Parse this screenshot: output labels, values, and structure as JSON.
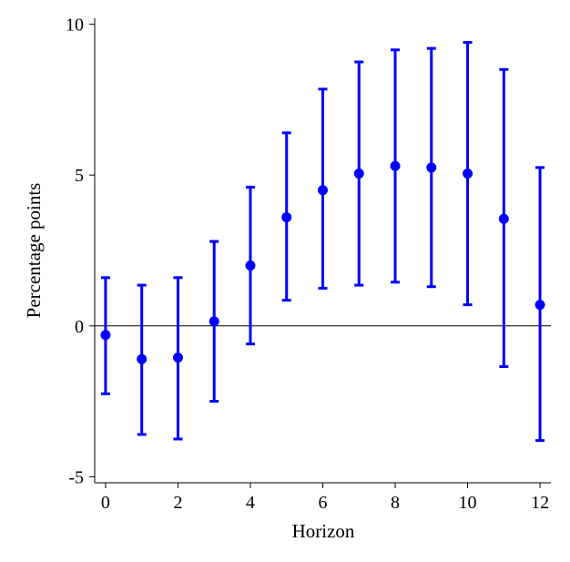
{
  "chart_data": {
    "type": "scatter",
    "title": "",
    "xlabel": "Horizon",
    "ylabel": "Percentage points",
    "xlim": [
      -0.3,
      12.3
    ],
    "ylim": [
      -5.2,
      10.2
    ],
    "xticks": [
      0,
      2,
      4,
      6,
      8,
      10,
      12
    ],
    "xtick_labels": [
      "0",
      "2",
      "4",
      "6",
      "8",
      "10",
      "12"
    ],
    "yticks": [
      -5,
      0,
      5,
      10
    ],
    "ytick_labels": [
      "-5",
      "0",
      "5",
      "10"
    ],
    "zero_line": true,
    "grid": false,
    "legend": "none",
    "series": [
      {
        "x": [
          0,
          1,
          2,
          3,
          4,
          5,
          6,
          7,
          8,
          9,
          10,
          11,
          12
        ],
        "y": [
          -0.3,
          -1.1,
          -1.05,
          0.15,
          2.0,
          3.6,
          4.5,
          5.05,
          5.3,
          5.25,
          5.05,
          3.55,
          0.7
        ],
        "lower": [
          -2.25,
          -3.6,
          -3.75,
          -2.5,
          -0.6,
          0.85,
          1.25,
          1.35,
          1.45,
          1.3,
          0.7,
          -1.35,
          -3.8
        ],
        "upper": [
          1.6,
          1.35,
          1.6,
          2.8,
          4.6,
          6.4,
          7.85,
          8.75,
          9.15,
          9.2,
          9.4,
          8.5,
          5.25
        ],
        "color": "#0000ff"
      }
    ]
  }
}
